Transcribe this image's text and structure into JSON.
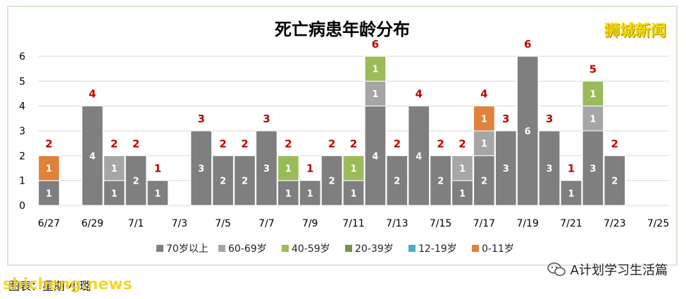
{
  "chart_data": {
    "type": "bar",
    "stacked": true,
    "title": "死亡病患年龄分布",
    "categories": [
      "6/27",
      "6/28",
      "6/29",
      "6/30",
      "7/1",
      "7/2",
      "7/3",
      "7/4",
      "7/5",
      "7/6",
      "7/7",
      "7/8",
      "7/9",
      "7/10",
      "7/11",
      "7/12",
      "7/13",
      "7/14",
      "7/15",
      "7/16",
      "7/17",
      "7/18",
      "7/19",
      "7/20",
      "7/21",
      "7/22",
      "7/23",
      "7/24",
      "7/25"
    ],
    "x_tick_labels": [
      "6/27",
      "6/29",
      "7/1",
      "7/3",
      "7/5",
      "7/7",
      "7/9",
      "7/11",
      "7/13",
      "7/15",
      "7/17",
      "7/19",
      "7/21",
      "7/23",
      "7/25"
    ],
    "ylim": [
      0,
      6
    ],
    "y_ticks": [
      0,
      1,
      2,
      3,
      4,
      5,
      6
    ],
    "grid": true,
    "legend_position": "bottom",
    "totals": [
      2,
      0,
      4,
      2,
      2,
      1,
      0,
      3,
      2,
      2,
      3,
      2,
      1,
      2,
      2,
      6,
      2,
      4,
      2,
      2,
      4,
      3,
      6,
      3,
      1,
      5,
      2,
      0,
      0
    ],
    "series": [
      {
        "name": "70岁以上",
        "color": "#7f7f7f",
        "values": [
          1,
          0,
          4,
          1,
          2,
          1,
          0,
          3,
          2,
          2,
          3,
          1,
          1,
          2,
          1,
          4,
          2,
          4,
          2,
          1,
          2,
          3,
          6,
          3,
          1,
          3,
          2,
          0,
          0
        ]
      },
      {
        "name": "60-69岁",
        "color": "#a6a6a6",
        "values": [
          0,
          0,
          0,
          1,
          0,
          0,
          0,
          0,
          0,
          0,
          0,
          0,
          0,
          0,
          0,
          1,
          0,
          0,
          0,
          1,
          1,
          0,
          0,
          0,
          0,
          1,
          0,
          0,
          0
        ]
      },
      {
        "name": "40-59岁",
        "color": "#9bbb59",
        "values": [
          0,
          0,
          0,
          0,
          0,
          0,
          0,
          0,
          0,
          0,
          0,
          1,
          0,
          0,
          1,
          1,
          0,
          0,
          0,
          0,
          0,
          0,
          0,
          0,
          0,
          1,
          0,
          0,
          0
        ]
      },
      {
        "name": "20-39岁",
        "color": "#77933c",
        "values": [
          0,
          0,
          0,
          0,
          0,
          0,
          0,
          0,
          0,
          0,
          0,
          0,
          0,
          0,
          0,
          0,
          0,
          0,
          0,
          0,
          0,
          0,
          0,
          0,
          0,
          0,
          0,
          0,
          0
        ]
      },
      {
        "name": "12-19岁",
        "color": "#4bacc6",
        "values": [
          0,
          0,
          0,
          0,
          0,
          0,
          0,
          0,
          0,
          0,
          0,
          0,
          0,
          0,
          0,
          0,
          0,
          0,
          0,
          0,
          0,
          0,
          0,
          0,
          0,
          0,
          0,
          0,
          0
        ]
      },
      {
        "name": "0-11岁",
        "color": "#e0823a",
        "values": [
          1,
          0,
          0,
          0,
          0,
          0,
          0,
          0,
          0,
          0,
          0,
          0,
          0,
          0,
          0,
          0,
          0,
          0,
          0,
          0,
          1,
          0,
          0,
          0,
          0,
          0,
          0,
          0,
          0
        ]
      }
    ],
    "total_label_color": "#c00000"
  },
  "brand": "狮城新闻",
  "credit": "图表：星期·小璐",
  "watermark": "shicheng.news",
  "wechat_account": "A计划学习生活篇"
}
